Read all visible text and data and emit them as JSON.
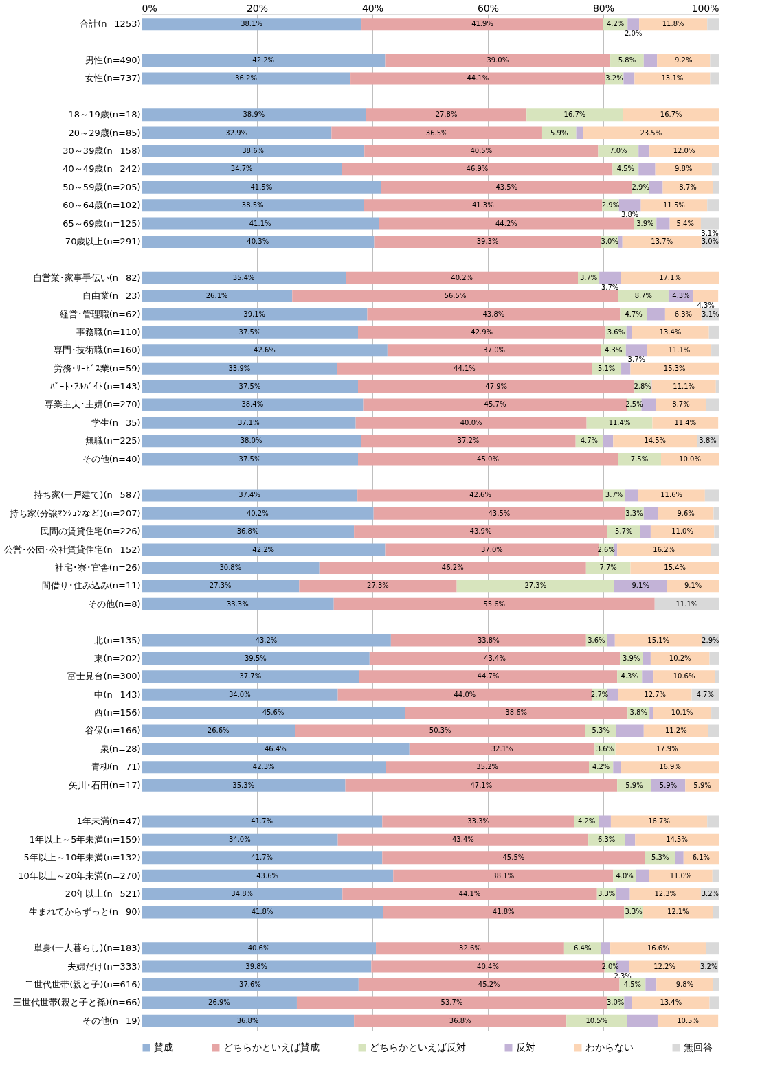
{
  "chart_data": {
    "type": "bar",
    "orientation": "horizontal",
    "stacked": true,
    "categories": [
      "合計(n=1253)",
      null,
      "男性(n=490)",
      "女性(n=737)",
      null,
      "18～19歳(n=18)",
      "20～29歳(n=85)",
      "30～39歳(n=158)",
      "40～49歳(n=242)",
      "50～59歳(n=205)",
      "60～64歳(n=102)",
      "65～69歳(n=125)",
      "70歳以上(n=291)",
      null,
      "自営業･家事手伝い(n=82)",
      "自由業(n=23)",
      "経営･管理職(n=62)",
      "事務職(n=110)",
      "専門･技術職(n=160)",
      "労務･ｻｰﾋﾞｽ業(n=59)",
      "ﾊﾟｰﾄ･ｱﾙﾊﾞｲﾄ(n=143)",
      "専業主夫･主婦(n=270)",
      "学生(n=35)",
      "無職(n=225)",
      "その他(n=40)",
      null,
      "持ち家(一戸建て)(n=587)",
      "持ち家(分譲ﾏﾝｼｮﾝなど)(n=207)",
      "民間の賃貸住宅(n=226)",
      "公営･公団･公社賃貸住宅(n=152)",
      "社宅･寮･官舎(n=26)",
      "間借り･住み込み(n=11)",
      "その他(n=8)",
      null,
      "北(n=135)",
      "東(n=202)",
      "富士見台(n=300)",
      "中(n=143)",
      "西(n=156)",
      "谷保(n=166)",
      "泉(n=28)",
      "青柳(n=71)",
      "矢川･石田(n=17)",
      null,
      "1年未満(n=47)",
      "1年以上～5年未満(n=159)",
      "5年以上～10年未満(n=132)",
      "10年以上～20年未満(n=270)",
      "20年以上(n=521)",
      "生まれてからずっと(n=90)",
      null,
      "単身(一人暮らし)(n=183)",
      "夫婦だけ(n=333)",
      "二世代世帯(親と子)(n=616)",
      "三世代世帯(親と子と孫)(n=66)",
      "その他(n=19)"
    ],
    "xlim": [
      0,
      100
    ],
    "xticks": [
      {
        "value": 0,
        "label": "0%"
      },
      {
        "value": 20,
        "label": "20%"
      },
      {
        "value": 40,
        "label": "40%"
      },
      {
        "value": 60,
        "label": "60%"
      },
      {
        "value": 80,
        "label": "80%"
      },
      {
        "value": 100,
        "label": "100%"
      }
    ],
    "grid": "x",
    "legend": "bottom",
    "series": [
      {
        "name": "賛成",
        "color": "#95b3d7",
        "values": [
          38.1,
          null,
          42.2,
          36.2,
          null,
          38.9,
          32.9,
          38.6,
          34.7,
          41.5,
          38.5,
          41.1,
          40.3,
          null,
          35.4,
          26.1,
          39.1,
          37.5,
          42.6,
          33.9,
          37.5,
          38.4,
          37.1,
          38.0,
          37.5,
          null,
          37.4,
          40.2,
          36.8,
          42.2,
          30.8,
          27.3,
          33.3,
          null,
          43.2,
          39.5,
          37.7,
          34.0,
          45.6,
          26.6,
          46.4,
          42.3,
          35.3,
          null,
          41.7,
          34.0,
          41.7,
          43.6,
          34.8,
          41.8,
          null,
          40.6,
          39.8,
          37.6,
          26.9,
          36.8
        ],
        "value_labels": [
          "38.1%",
          null,
          "42.2%",
          "36.2%",
          null,
          "38.9%",
          "32.9%",
          "38.6%",
          "34.7%",
          "41.5%",
          "38.5%",
          "41.1%",
          "40.3%",
          null,
          "35.4%",
          "26.1%",
          "39.1%",
          "37.5%",
          "42.6%",
          "33.9%",
          "37.5%",
          "38.4%",
          "37.1%",
          "38.0%",
          "37.5%",
          null,
          "37.4%",
          "40.2%",
          "36.8%",
          "42.2%",
          "30.8%",
          "27.3%",
          "33.3%",
          null,
          "43.2%",
          "39.5%",
          "37.7%",
          "34.0%",
          "45.6%",
          "26.6%",
          "46.4%",
          "42.3%",
          "35.3%",
          null,
          "41.7%",
          "34.0%",
          "41.7%",
          "43.6%",
          "34.8%",
          "41.8%",
          null,
          "40.6%",
          "39.8%",
          "37.6%",
          "26.9%",
          "36.8%"
        ]
      },
      {
        "name": "どちらかといえば賛成",
        "color": "#e6a5a5",
        "values": [
          41.9,
          null,
          39.0,
          44.1,
          null,
          27.8,
          36.5,
          40.5,
          46.9,
          43.5,
          41.3,
          44.2,
          39.3,
          null,
          40.2,
          56.5,
          43.8,
          42.9,
          37.0,
          44.1,
          47.9,
          45.7,
          40.0,
          37.2,
          45.0,
          null,
          42.6,
          43.5,
          43.9,
          37.0,
          46.2,
          27.3,
          55.6,
          null,
          33.8,
          43.4,
          44.7,
          44.0,
          38.6,
          50.3,
          32.1,
          35.2,
          47.1,
          null,
          33.3,
          43.4,
          45.5,
          38.1,
          44.1,
          41.8,
          null,
          32.6,
          40.4,
          45.2,
          53.7,
          36.8
        ],
        "value_labels": [
          "41.9%",
          null,
          "39.0%",
          "44.1%",
          null,
          "27.8%",
          "36.5%",
          "40.5%",
          "46.9%",
          "43.5%",
          "41.3%",
          "44.2%",
          "39.3%",
          null,
          "40.2%",
          "56.5%",
          "43.8%",
          "42.9%",
          "37.0%",
          "44.1%",
          "47.9%",
          "45.7%",
          "40.0%",
          "37.2%",
          "45.0%",
          null,
          "42.6%",
          "43.5%",
          "43.9%",
          "37.0%",
          "46.2%",
          "27.3%",
          "55.6%",
          null,
          "33.8%",
          "43.4%",
          "44.7%",
          "44.0%",
          "38.6%",
          "50.3%",
          "32.1%",
          "35.2%",
          "47.1%",
          null,
          "33.3%",
          "43.4%",
          "45.5%",
          "38.1%",
          "44.1%",
          "41.8%",
          null,
          "32.6%",
          "40.4%",
          "45.2%",
          "53.7%",
          "36.8%"
        ]
      },
      {
        "name": "どちらかといえば反対",
        "color": "#d7e4bd",
        "values": [
          4.2,
          null,
          5.8,
          3.2,
          null,
          16.7,
          5.9,
          7.0,
          4.5,
          2.9,
          2.9,
          3.9,
          3.0,
          null,
          3.7,
          8.7,
          4.7,
          3.6,
          4.3,
          5.1,
          2.8,
          2.5,
          11.4,
          4.7,
          7.5,
          null,
          3.7,
          3.3,
          5.7,
          2.6,
          7.7,
          27.3,
          0,
          null,
          3.6,
          3.9,
          4.3,
          2.7,
          3.8,
          5.3,
          3.6,
          4.2,
          5.9,
          null,
          4.2,
          6.3,
          5.3,
          4.0,
          3.3,
          3.3,
          null,
          6.4,
          2.0,
          4.5,
          3.0,
          10.5
        ],
        "value_labels": [
          "4.2%",
          null,
          "5.8%",
          "3.2%",
          null,
          "16.7%",
          "5.9%",
          "7.0%",
          "4.5%",
          "2.9%",
          "2.9%",
          "3.9%",
          "3.0%",
          null,
          "3.7%",
          "8.7%",
          "4.7%",
          "3.6%",
          "4.3%",
          "5.1%",
          "2.8%",
          "2.5%",
          "11.4%",
          "4.7%",
          "7.5%",
          null,
          "3.7%",
          "3.3%",
          "5.7%",
          "2.6%",
          "7.7%",
          "27.3%",
          null,
          null,
          "3.6%",
          "3.9%",
          "4.3%",
          "2.7%",
          "3.8%",
          "5.3%",
          "3.6%",
          "4.2%",
          "5.9%",
          null,
          "4.2%",
          "6.3%",
          "5.3%",
          "4.0%",
          "3.3%",
          "3.3%",
          null,
          "6.4%",
          "2.0%",
          "4.5%",
          "3.0%",
          "10.5%"
        ]
      },
      {
        "name": "反対",
        "color": "#c3b3d7",
        "values": [
          2.0,
          null,
          2.3,
          1.9,
          null,
          0,
          1.2,
          1.9,
          2.9,
          2.4,
          3.8,
          2.3,
          0.7,
          null,
          3.7,
          4.3,
          3.1,
          0.9,
          3.7,
          1.6,
          0.2,
          2.5,
          0,
          1.8,
          0,
          null,
          2.3,
          2.5,
          1.8,
          0.6,
          0,
          9.1,
          0,
          null,
          1.4,
          1.4,
          2.0,
          1.9,
          0.6,
          4.8,
          0,
          1.4,
          5.9,
          null,
          2.1,
          1.8,
          1.4,
          2.2,
          2.4,
          0,
          null,
          1.6,
          2.3,
          1.9,
          1.4,
          5.3
        ],
        "value_labels": [
          "2.0%",
          null,
          null,
          null,
          null,
          null,
          null,
          null,
          null,
          null,
          "3.8%",
          null,
          null,
          null,
          "3.7%",
          "4.3%",
          null,
          null,
          "3.7%",
          null,
          null,
          null,
          null,
          null,
          null,
          null,
          null,
          null,
          null,
          null,
          null,
          "9.1%",
          null,
          null,
          null,
          null,
          null,
          null,
          null,
          null,
          null,
          null,
          "5.9%",
          null,
          null,
          null,
          null,
          null,
          null,
          null,
          null,
          null,
          "2.3%",
          null,
          null,
          null
        ]
      },
      {
        "name": "わからない",
        "color": "#fcd5b5",
        "values": [
          11.8,
          null,
          9.2,
          13.1,
          null,
          16.7,
          23.5,
          12.0,
          9.8,
          8.7,
          11.5,
          5.4,
          13.7,
          null,
          17.1,
          4.3,
          6.3,
          13.4,
          11.1,
          15.3,
          11.1,
          8.7,
          11.4,
          14.5,
          10.0,
          null,
          11.6,
          9.6,
          11.0,
          16.2,
          15.4,
          9.1,
          0,
          null,
          15.1,
          10.2,
          10.6,
          12.7,
          10.1,
          11.2,
          17.9,
          16.9,
          5.9,
          null,
          16.7,
          14.5,
          6.1,
          11.0,
          12.3,
          12.1,
          null,
          16.6,
          12.2,
          9.8,
          13.4,
          10.5
        ],
        "value_labels": [
          "11.8%",
          null,
          "9.2%",
          "13.1%",
          null,
          "16.7%",
          "23.5%",
          "12.0%",
          "9.8%",
          "8.7%",
          "11.5%",
          "5.4%",
          "13.7%",
          null,
          "17.1%",
          "4.3%",
          "6.3%",
          "13.4%",
          "11.1%",
          "15.3%",
          "11.1%",
          "8.7%",
          "11.4%",
          "14.5%",
          "10.0%",
          null,
          "11.6%",
          "9.6%",
          "11.0%",
          "16.2%",
          "15.4%",
          "9.1%",
          null,
          null,
          "15.1%",
          "10.2%",
          "10.6%",
          "12.7%",
          "10.1%",
          "11.2%",
          "17.9%",
          "16.9%",
          "5.9%",
          null,
          "16.7%",
          "14.5%",
          "6.1%",
          "11.0%",
          "12.3%",
          "12.1%",
          null,
          "16.6%",
          "12.2%",
          "9.8%",
          "13.4%",
          "10.5%"
        ]
      },
      {
        "name": "無回答",
        "color": "#d9d9d9",
        "values": [
          2.0,
          null,
          1.5,
          1.5,
          null,
          0,
          0,
          0,
          1.2,
          1.0,
          2.0,
          3.1,
          3.0,
          null,
          0,
          0,
          3.1,
          1.7,
          1.3,
          0,
          0.5,
          2.2,
          0,
          3.8,
          0,
          null,
          2.4,
          0.9,
          0.8,
          1.4,
          0,
          0,
          11.1,
          null,
          2.9,
          1.6,
          0.7,
          4.7,
          1.3,
          1.8,
          0,
          0,
          0,
          null,
          2.0,
          0,
          0,
          1.1,
          3.2,
          1.0,
          null,
          2.2,
          3.2,
          1.0,
          1.6,
          0
        ],
        "value_labels": [
          null,
          null,
          null,
          null,
          null,
          null,
          null,
          null,
          null,
          null,
          null,
          "3.1%",
          "3.0%",
          null,
          null,
          null,
          "3.1%",
          null,
          null,
          null,
          null,
          null,
          null,
          "3.8%",
          null,
          null,
          null,
          null,
          null,
          null,
          null,
          null,
          "11.1%",
          null,
          "2.9%",
          null,
          null,
          "4.7%",
          null,
          null,
          null,
          null,
          null,
          null,
          null,
          null,
          null,
          null,
          "3.2%",
          null,
          null,
          null,
          "3.2%",
          null,
          null,
          null
        ]
      }
    ]
  }
}
